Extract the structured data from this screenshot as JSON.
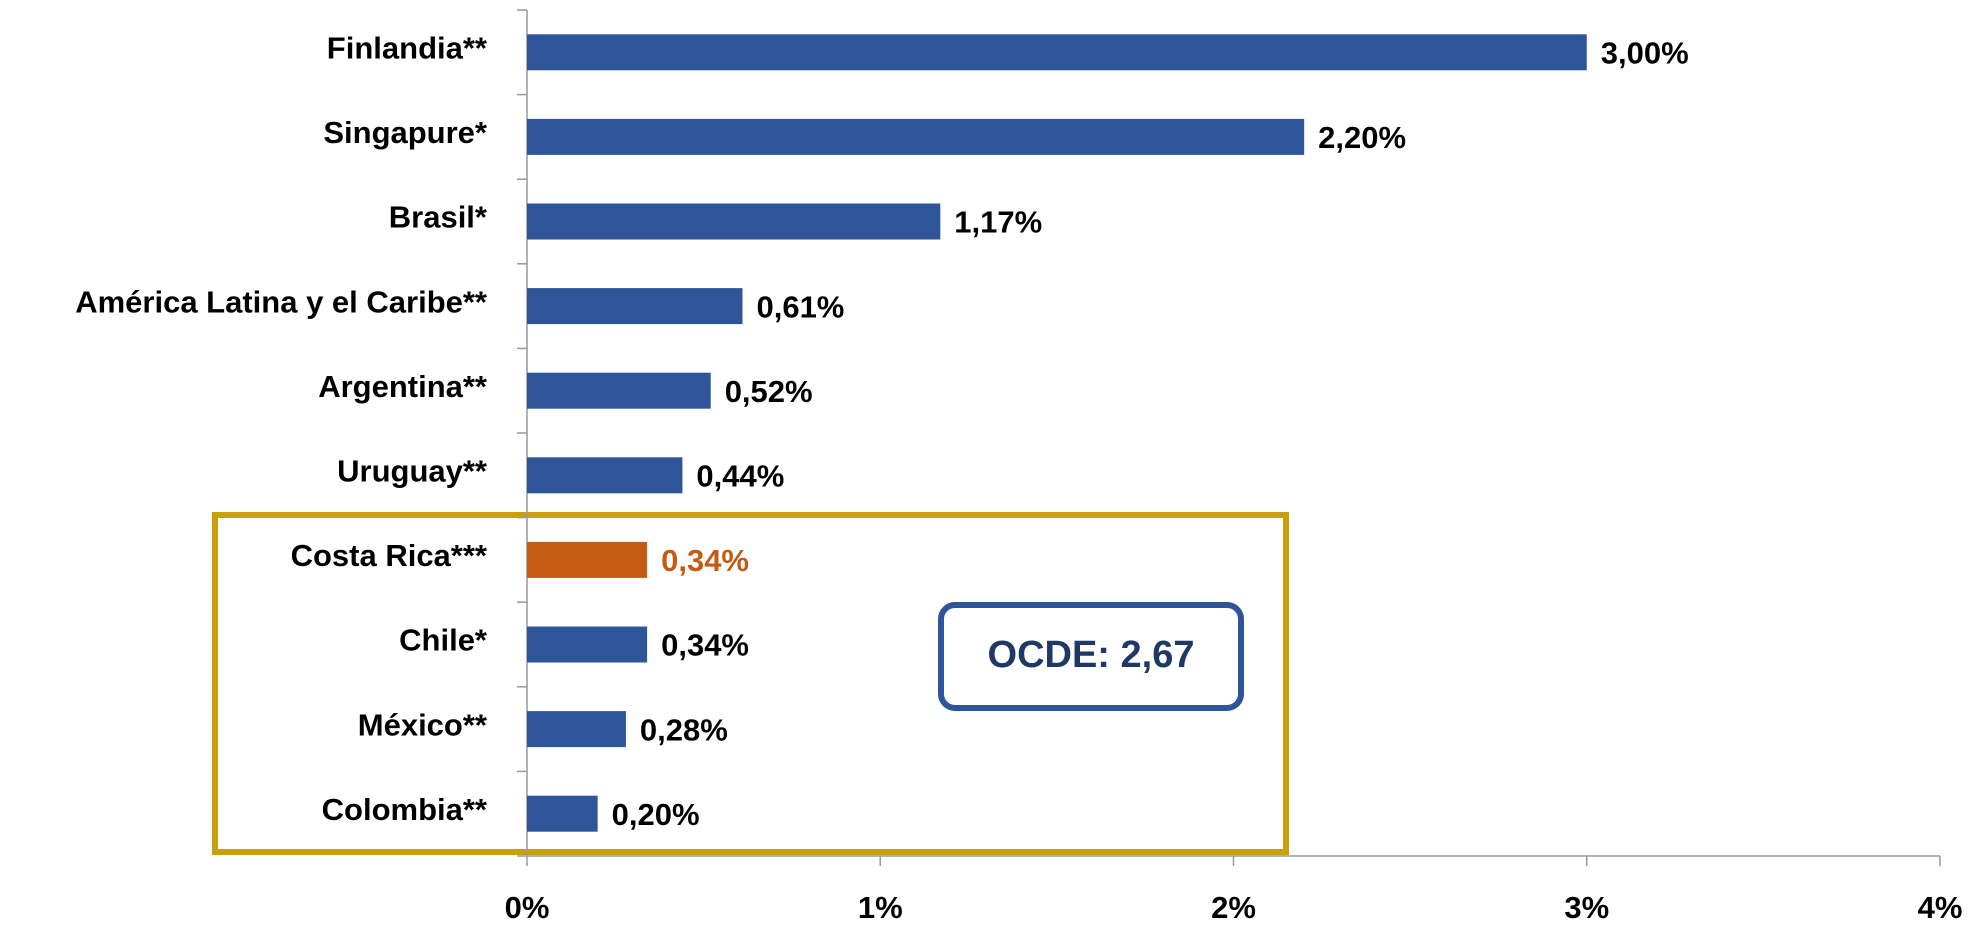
{
  "chart_data": {
    "type": "barh",
    "categories": [
      "Finlandia**",
      "Singapure*",
      "Brasil*",
      "América Latina y el Caribe**",
      "Argentina**",
      "Uruguay**",
      "Costa Rica***",
      "Chile*",
      "México**",
      "Colombia**"
    ],
    "values": [
      3.0,
      2.2,
      1.17,
      0.61,
      0.52,
      0.44,
      0.34,
      0.34,
      0.28,
      0.2
    ],
    "value_labels": [
      "3,00%",
      "2,20%",
      "1,17%",
      "0,61%",
      "0,52%",
      "0,44%",
      "0,34%",
      "0,34%",
      "0,28%",
      "0,20%"
    ],
    "colors": [
      "#2e5597",
      "#2e5597",
      "#2e5597",
      "#2e5597",
      "#2e5597",
      "#2e5597",
      "#c55a11",
      "#2e5597",
      "#2e5597",
      "#2e5597"
    ],
    "label_colors": [
      "#000000",
      "#000000",
      "#000000",
      "#000000",
      "#000000",
      "#000000",
      "#c55a11",
      "#000000",
      "#000000",
      "#000000"
    ],
    "xlim": [
      0,
      4
    ],
    "xticks": [
      {
        "value": 0,
        "label": "0%"
      },
      {
        "value": 1,
        "label": "1%"
      },
      {
        "value": 2,
        "label": "2%"
      },
      {
        "value": 3,
        "label": "3%"
      },
      {
        "value": 4,
        "label": "4%"
      }
    ],
    "annotation": "OCDE: 2,67"
  }
}
